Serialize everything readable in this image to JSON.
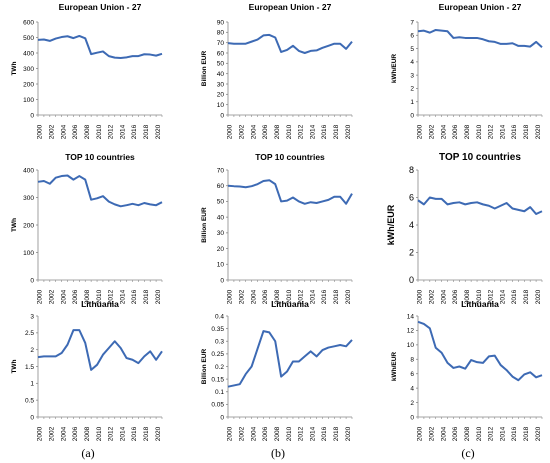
{
  "years": [
    "2000",
    "2001",
    "2002",
    "2003",
    "2004",
    "2005",
    "2006",
    "2007",
    "2008",
    "2009",
    "2010",
    "2011",
    "2012",
    "2013",
    "2014",
    "2015",
    "2016",
    "2017",
    "2018",
    "2019",
    "2020",
    "2021"
  ],
  "x_tick_labels": [
    "2000",
    "2002",
    "2004",
    "2006",
    "2008",
    "2010",
    "2012",
    "2014",
    "2016",
    "2018",
    "2020"
  ],
  "line_color": "#3D6AB4",
  "panel_labels": [
    "(a)",
    "(b)",
    "(c)"
  ],
  "chart_data": [
    {
      "id": "eu-twh",
      "type": "line",
      "title": "European Union - 27",
      "ylabel": "TWh",
      "ylim": [
        0,
        600
      ],
      "yticks": [
        0,
        100,
        200,
        300,
        400,
        500,
        600
      ],
      "x": [
        "2000",
        "2001",
        "2002",
        "2003",
        "2004",
        "2005",
        "2006",
        "2007",
        "2008",
        "2009",
        "2010",
        "2011",
        "2012",
        "2013",
        "2014",
        "2015",
        "2016",
        "2017",
        "2018",
        "2019",
        "2020",
        "2021"
      ],
      "values": [
        485,
        487,
        478,
        493,
        503,
        508,
        496,
        510,
        495,
        393,
        402,
        410,
        380,
        370,
        368,
        372,
        380,
        380,
        392,
        390,
        383,
        395
      ]
    },
    {
      "id": "eu-eur",
      "type": "line",
      "title": "European Union - 27",
      "ylabel": "Billion EUR",
      "ylim": [
        0,
        90
      ],
      "yticks": [
        0,
        10,
        20,
        30,
        40,
        50,
        60,
        70,
        80,
        90
      ],
      "x": [
        "2000",
        "2001",
        "2002",
        "2003",
        "2004",
        "2005",
        "2006",
        "2007",
        "2008",
        "2009",
        "2010",
        "2011",
        "2012",
        "2013",
        "2014",
        "2015",
        "2016",
        "2017",
        "2018",
        "2019",
        "2020",
        "2021"
      ],
      "values": [
        69.5,
        69,
        69,
        69,
        71,
        73,
        77,
        77.5,
        75,
        61,
        63,
        67,
        62,
        60,
        62,
        62.5,
        65,
        67,
        69,
        69,
        64,
        71
      ]
    },
    {
      "id": "eu-kwh",
      "type": "line",
      "title": "European Union - 27",
      "ylabel": "kWh/EUR",
      "ylim": [
        0,
        7
      ],
      "yticks": [
        0,
        1,
        2,
        3,
        4,
        5,
        6,
        7
      ],
      "x": [
        "2000",
        "2001",
        "2002",
        "2003",
        "2004",
        "2005",
        "2006",
        "2007",
        "2008",
        "2009",
        "2010",
        "2011",
        "2012",
        "2013",
        "2014",
        "2015",
        "2016",
        "2017",
        "2018",
        "2019",
        "2020",
        "2021"
      ],
      "values": [
        6.3,
        6.35,
        6.2,
        6.4,
        6.35,
        6.3,
        5.8,
        5.85,
        5.8,
        5.8,
        5.8,
        5.7,
        5.55,
        5.5,
        5.35,
        5.35,
        5.4,
        5.2,
        5.2,
        5.15,
        5.5,
        5.1
      ]
    },
    {
      "id": "top10-twh",
      "type": "line",
      "title": "TOP 10 countries",
      "ylabel": "TWh",
      "ylim": [
        0,
        400
      ],
      "yticks": [
        0,
        100,
        200,
        300,
        400
      ],
      "x": [
        "2000",
        "2001",
        "2002",
        "2003",
        "2004",
        "2005",
        "2006",
        "2007",
        "2008",
        "2009",
        "2010",
        "2011",
        "2012",
        "2013",
        "2014",
        "2015",
        "2016",
        "2017",
        "2018",
        "2019",
        "2020",
        "2021"
      ],
      "values": [
        357,
        360,
        350,
        372,
        378,
        380,
        365,
        378,
        365,
        292,
        297,
        305,
        285,
        275,
        268,
        272,
        277,
        272,
        280,
        275,
        272,
        283
      ]
    },
    {
      "id": "top10-eur",
      "type": "line",
      "title": "TOP 10 countries",
      "ylabel": "Billion EUR",
      "ylim": [
        0,
        70
      ],
      "yticks": [
        0,
        10,
        20,
        30,
        40,
        50,
        60,
        70
      ],
      "x": [
        "2000",
        "2001",
        "2002",
        "2003",
        "2004",
        "2005",
        "2006",
        "2007",
        "2008",
        "2009",
        "2010",
        "2011",
        "2012",
        "2013",
        "2014",
        "2015",
        "2016",
        "2017",
        "2018",
        "2019",
        "2020",
        "2021"
      ],
      "values": [
        60,
        59.7,
        59.5,
        59,
        59.7,
        61,
        63,
        63.5,
        61,
        50,
        50.5,
        52.5,
        50,
        48.5,
        49.5,
        49,
        50,
        51,
        53,
        53,
        48.5,
        55
      ]
    },
    {
      "id": "top10-kwh",
      "type": "line",
      "title": "TOP 10 countries",
      "ylabel": "kWh/EUR",
      "ylim": [
        0,
        8
      ],
      "yticks": [
        0,
        2,
        4,
        6,
        8
      ],
      "x": [
        "2000",
        "2001",
        "2002",
        "2003",
        "2004",
        "2005",
        "2006",
        "2007",
        "2008",
        "2009",
        "2010",
        "2011",
        "2012",
        "2013",
        "2014",
        "2015",
        "2016",
        "2017",
        "2018",
        "2019",
        "2020",
        "2021"
      ],
      "values": [
        5.8,
        5.5,
        6.0,
        5.9,
        5.9,
        5.5,
        5.6,
        5.65,
        5.5,
        5.6,
        5.65,
        5.5,
        5.4,
        5.2,
        5.4,
        5.6,
        5.2,
        5.1,
        5.0,
        5.3,
        4.8,
        5.0
      ]
    },
    {
      "id": "lt-twh",
      "type": "line",
      "title": "Lithuania",
      "ylabel": "TWh",
      "ylim": [
        0,
        3
      ],
      "yticks": [
        "0",
        "0.5",
        "1",
        "1.5",
        "2",
        "2.5",
        "3"
      ],
      "x": [
        "2000",
        "2001",
        "2002",
        "2003",
        "2004",
        "2005",
        "2006",
        "2007",
        "2008",
        "2009",
        "2010",
        "2011",
        "2012",
        "2013",
        "2014",
        "2015",
        "2016",
        "2017",
        "2018",
        "2019",
        "2020",
        "2021"
      ],
      "values": [
        1.78,
        1.8,
        1.8,
        1.8,
        1.9,
        2.15,
        2.58,
        2.58,
        2.2,
        1.4,
        1.55,
        1.85,
        2.05,
        2.25,
        2.05,
        1.75,
        1.7,
        1.6,
        1.8,
        1.95,
        1.7,
        1.95
      ]
    },
    {
      "id": "lt-eur",
      "type": "line",
      "title": "Lithuania",
      "ylabel": "Billion EUR",
      "ylim": [
        0,
        0.4
      ],
      "yticks": [
        "0",
        "0.05",
        "0.1",
        "0.15",
        "0.2",
        "0.25",
        "0.3",
        "0.35",
        "0.4"
      ],
      "x": [
        "2000",
        "2001",
        "2002",
        "2003",
        "2004",
        "2005",
        "2006",
        "2007",
        "2008",
        "2009",
        "2010",
        "2011",
        "2012",
        "2013",
        "2014",
        "2015",
        "2016",
        "2017",
        "2018",
        "2019",
        "2020",
        "2021"
      ],
      "values": [
        0.12,
        0.125,
        0.13,
        0.17,
        0.2,
        0.27,
        0.34,
        0.335,
        0.3,
        0.16,
        0.18,
        0.22,
        0.22,
        0.24,
        0.26,
        0.24,
        0.265,
        0.275,
        0.28,
        0.285,
        0.28,
        0.305
      ]
    },
    {
      "id": "lt-kwh",
      "type": "line",
      "title": "Lithuania",
      "ylabel": "kWh/EUR",
      "ylim": [
        0,
        14
      ],
      "yticks": [
        0,
        2,
        4,
        6,
        8,
        10,
        12,
        14
      ],
      "x": [
        "2000",
        "2001",
        "2002",
        "2003",
        "2004",
        "2005",
        "2006",
        "2007",
        "2008",
        "2009",
        "2010",
        "2011",
        "2012",
        "2013",
        "2014",
        "2015",
        "2016",
        "2017",
        "2018",
        "2019",
        "2020",
        "2021"
      ],
      "values": [
        13.2,
        12.9,
        12.3,
        9.6,
        8.9,
        7.5,
        6.8,
        7.0,
        6.7,
        7.9,
        7.6,
        7.5,
        8.4,
        8.5,
        7.2,
        6.5,
        5.6,
        5.1,
        5.9,
        6.2,
        5.5,
        5.8
      ]
    }
  ]
}
